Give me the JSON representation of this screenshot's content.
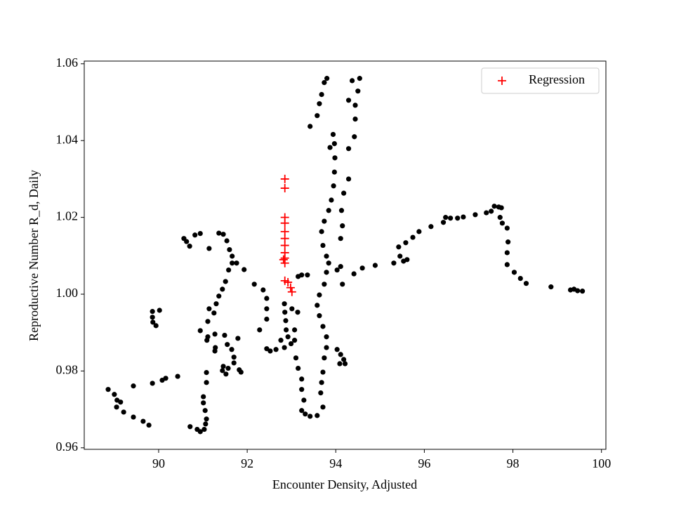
{
  "chart_data": {
    "type": "scatter",
    "xlabel": "Encounter Density, Adjusted",
    "ylabel": "Reproductive Number R_d, Daily",
    "xlim": [
      88.32,
      100.1
    ],
    "ylim": [
      0.9596,
      1.0607
    ],
    "xticks": [
      90,
      92,
      94,
      96,
      98,
      100
    ],
    "yticks": [
      0.96,
      0.98,
      {
        "value": 1,
        "label": "1.00"
      },
      1.02,
      1.04,
      1.06
    ],
    "legend": "upper right",
    "series": [
      {
        "color": "#000000",
        "marker": "circle",
        "x": [
          88.86,
          89.0,
          89.06,
          89.14,
          89.05,
          89.21,
          89.43,
          89.43,
          89.65,
          89.78,
          89.86,
          90.08,
          90.16,
          90.43,
          89.86,
          89.86,
          89.87,
          89.94,
          90.02,
          90.71,
          90.87,
          90.94,
          91.03,
          91.06,
          91.08,
          91.05,
          91.01,
          91.01,
          91.08,
          91.08,
          90.57,
          90.63,
          90.7,
          90.82,
          90.94,
          91.14,
          91.14,
          91.11,
          90.94,
          91.11,
          91.09,
          91.27,
          91.28,
          91.27,
          91.36,
          91.46,
          91.54,
          91.6,
          91.66,
          91.66,
          91.58,
          91.51,
          91.44,
          91.36,
          91.3,
          91.25,
          91.49,
          91.55,
          91.65,
          91.7,
          91.7,
          91.57,
          91.46,
          91.44,
          91.52,
          91.82,
          91.79,
          91.76,
          91.93,
          92.16,
          91.86,
          92.28,
          92.36,
          92.44,
          92.44,
          92.44,
          92.44,
          92.52,
          92.65,
          92.76,
          92.84,
          92.85,
          92.87,
          92.88,
          92.92,
          92.84,
          92.99,
          93.07,
          93.07,
          93.01,
          93.14,
          93.15,
          93.23,
          93.36,
          93.1,
          93.15,
          93.23,
          93.23,
          93.28,
          93.23,
          93.31,
          93.42,
          93.58,
          93.71,
          93.66,
          93.68,
          93.71,
          93.74,
          93.79,
          93.79,
          93.71,
          93.63,
          93.58,
          93.63,
          93.74,
          93.79,
          93.84,
          93.79,
          93.71,
          93.68,
          93.74,
          93.84,
          93.9,
          93.95,
          93.97,
          93.98,
          93.97,
          93.94,
          93.87,
          93.42,
          93.58,
          93.63,
          93.68,
          93.74,
          93.8,
          94.03,
          94.11,
          94.15,
          94.11,
          94.15,
          94.13,
          94.18,
          94.29,
          94.29,
          94.29,
          94.37,
          94.44,
          94.44,
          94.42,
          94.5,
          94.54,
          94.03,
          94.11,
          94.18,
          94.21,
          94.09,
          94.41,
          94.6,
          94.89,
          95.31,
          95.42,
          95.45,
          95.53,
          95.61,
          95.58,
          95.74,
          95.88,
          96.15,
          96.43,
          96.48,
          96.59,
          96.75,
          96.88,
          97.15,
          97.4,
          97.51,
          97.58,
          97.68,
          97.74,
          97.71,
          97.76,
          97.87,
          97.89,
          97.87,
          97.87,
          98.03,
          98.17,
          98.3,
          98.86,
          99.3,
          99.38,
          99.46,
          99.57
        ],
        "values": [
          0.9752,
          0.9739,
          0.9724,
          0.9719,
          0.9706,
          0.9693,
          0.9761,
          0.968,
          0.9669,
          0.9659,
          0.9768,
          0.9776,
          0.9781,
          0.9786,
          0.9955,
          0.994,
          0.9927,
          0.9918,
          0.9958,
          0.9655,
          0.9648,
          0.9642,
          0.9648,
          0.9662,
          0.9675,
          0.9697,
          0.9717,
          0.9733,
          0.977,
          0.9796,
          1.0145,
          1.0137,
          1.0125,
          1.0154,
          1.0158,
          1.0119,
          0.9962,
          0.9929,
          0.9905,
          0.9889,
          0.988,
          0.9896,
          0.9861,
          0.9852,
          1.0159,
          1.0156,
          1.0139,
          1.0116,
          1.0099,
          1.0081,
          1.0063,
          1.0033,
          1.0013,
          0.9995,
          0.9975,
          0.9951,
          0.9893,
          0.9869,
          0.9856,
          0.9836,
          0.9821,
          0.9807,
          0.9812,
          0.9801,
          0.9792,
          0.9803,
          0.9885,
          1.0081,
          1.0064,
          1.0026,
          0.9797,
          0.9907,
          1.0011,
          0.9989,
          0.9962,
          0.9935,
          0.9858,
          0.9852,
          0.9856,
          0.988,
          0.9975,
          0.9953,
          0.9931,
          0.9907,
          0.9889,
          0.9861,
          0.9871,
          0.988,
          0.9907,
          0.9962,
          0.9953,
          1.0046,
          1.005,
          1.005,
          0.9834,
          0.9807,
          0.9779,
          0.9752,
          0.9724,
          0.9697,
          0.9688,
          0.9682,
          0.9684,
          0.9706,
          0.9743,
          0.977,
          0.9797,
          0.9834,
          0.9861,
          0.9889,
          0.9916,
          0.9944,
          0.9971,
          0.9998,
          1.0026,
          1.0057,
          1.0081,
          1.0099,
          1.0127,
          1.0163,
          1.019,
          1.0218,
          1.0245,
          1.0282,
          1.0318,
          1.0355,
          1.0392,
          1.0416,
          1.0382,
          1.0437,
          1.0465,
          1.0496,
          1.052,
          1.0551,
          1.0562,
          1.0063,
          1.0072,
          1.0026,
          1.0145,
          1.0178,
          1.0218,
          1.0263,
          1.03,
          1.0379,
          1.0505,
          1.0556,
          1.0492,
          1.0456,
          1.041,
          1.0529,
          1.0562,
          0.9856,
          0.9843,
          0.983,
          0.9819,
          0.9819,
          1.0053,
          1.0068,
          1.0075,
          1.0081,
          1.0123,
          1.0099,
          1.0086,
          1.009,
          1.0134,
          1.0148,
          1.0163,
          1.0176,
          1.0187,
          1.02,
          1.0198,
          1.0198,
          1.0201,
          1.0207,
          1.0212,
          1.0216,
          1.0229,
          1.0227,
          1.0225,
          1.02,
          1.0185,
          1.0172,
          1.0136,
          1.0108,
          1.0077,
          1.0057,
          1.0041,
          1.0028,
          1.0019,
          1.0011,
          1.0013,
          1.0009,
          1.0008
        ]
      },
      {
        "name": "Regression",
        "color": "#ff0000",
        "marker": "plus",
        "x": [
          92.85,
          92.85,
          92.85,
          92.85,
          92.85,
          92.85,
          92.85,
          92.85,
          92.85,
          92.82,
          92.85,
          92.85,
          92.92,
          92.98,
          93.01
        ],
        "values": [
          1.03,
          1.0276,
          1.02,
          1.0185,
          1.0163,
          1.0145,
          1.0127,
          1.0108,
          1.0094,
          1.009,
          1.0081,
          1.0035,
          1.0031,
          1.0017,
          1.0006
        ]
      }
    ]
  }
}
